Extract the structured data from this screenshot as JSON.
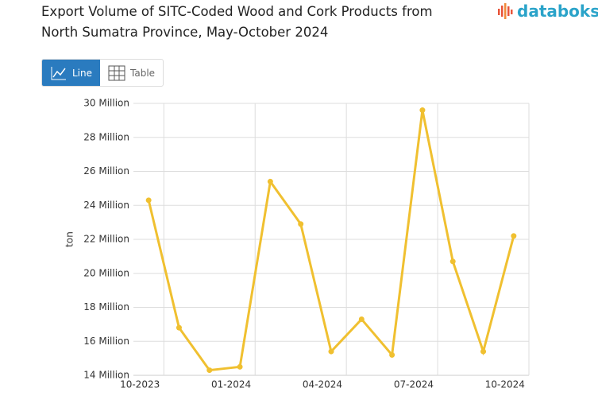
{
  "logo": "databoks",
  "view_buttons": [
    "Line",
    "Table"
  ],
  "chart_data": {
    "type": "line",
    "title": "Export Volume of SITC-Coded Wood and Cork Products from North Sumatra Province, May-October 2024",
    "y_label": "ton",
    "categories": [
      "10-2023",
      null,
      null,
      "01-2024",
      null,
      null,
      "04-2024",
      null,
      null,
      "07-2024",
      null,
      null,
      "10-2024"
    ],
    "series": [
      {
        "name": "ton",
        "color": "#f0c030",
        "values": [
          24300000,
          16800000,
          14300000,
          14500000,
          25400000,
          22900000,
          15400000,
          17300000,
          15200000,
          29600000,
          20700000,
          15400000,
          22200000
        ]
      }
    ],
    "ylim": [
      14000000,
      30000000
    ],
    "yticks": [
      {
        "value": 14000000,
        "label": "14 Million"
      },
      {
        "value": 16000000,
        "label": "16 Million"
      },
      {
        "value": 18000000,
        "label": "18 Million"
      },
      {
        "value": 20000000,
        "label": "20 Million"
      },
      {
        "value": 22000000,
        "label": "22 Million"
      },
      {
        "value": 24000000,
        "label": "24 Million"
      },
      {
        "value": 26000000,
        "label": "26 Million"
      },
      {
        "value": 28000000,
        "label": "28 Million"
      },
      {
        "value": 30000000,
        "label": "30 Million"
      }
    ],
    "grid": true
  }
}
